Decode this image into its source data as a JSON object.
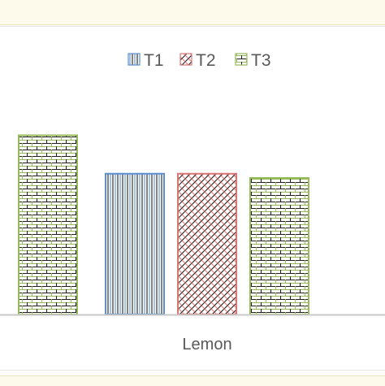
{
  "chart_data": {
    "type": "bar",
    "categories": [
      "",
      "Lemon"
    ],
    "series": [
      {
        "name": "T1",
        "values": [
          null,
          3.3
        ],
        "color": "#5b8fd1"
      },
      {
        "name": "T2",
        "values": [
          null,
          3.3
        ],
        "color": "#d97777"
      },
      {
        "name": "T3",
        "values": [
          4.2,
          3.2
        ],
        "color": "#98bb5a"
      }
    ],
    "ylim": [
      0,
      6
    ],
    "grid": false,
    "legend": "top-center",
    "colors": {
      "axis": "#c8c8c8",
      "text": "#595959",
      "frame": "#e4e4e4",
      "strip": "#fdfaeb"
    }
  }
}
